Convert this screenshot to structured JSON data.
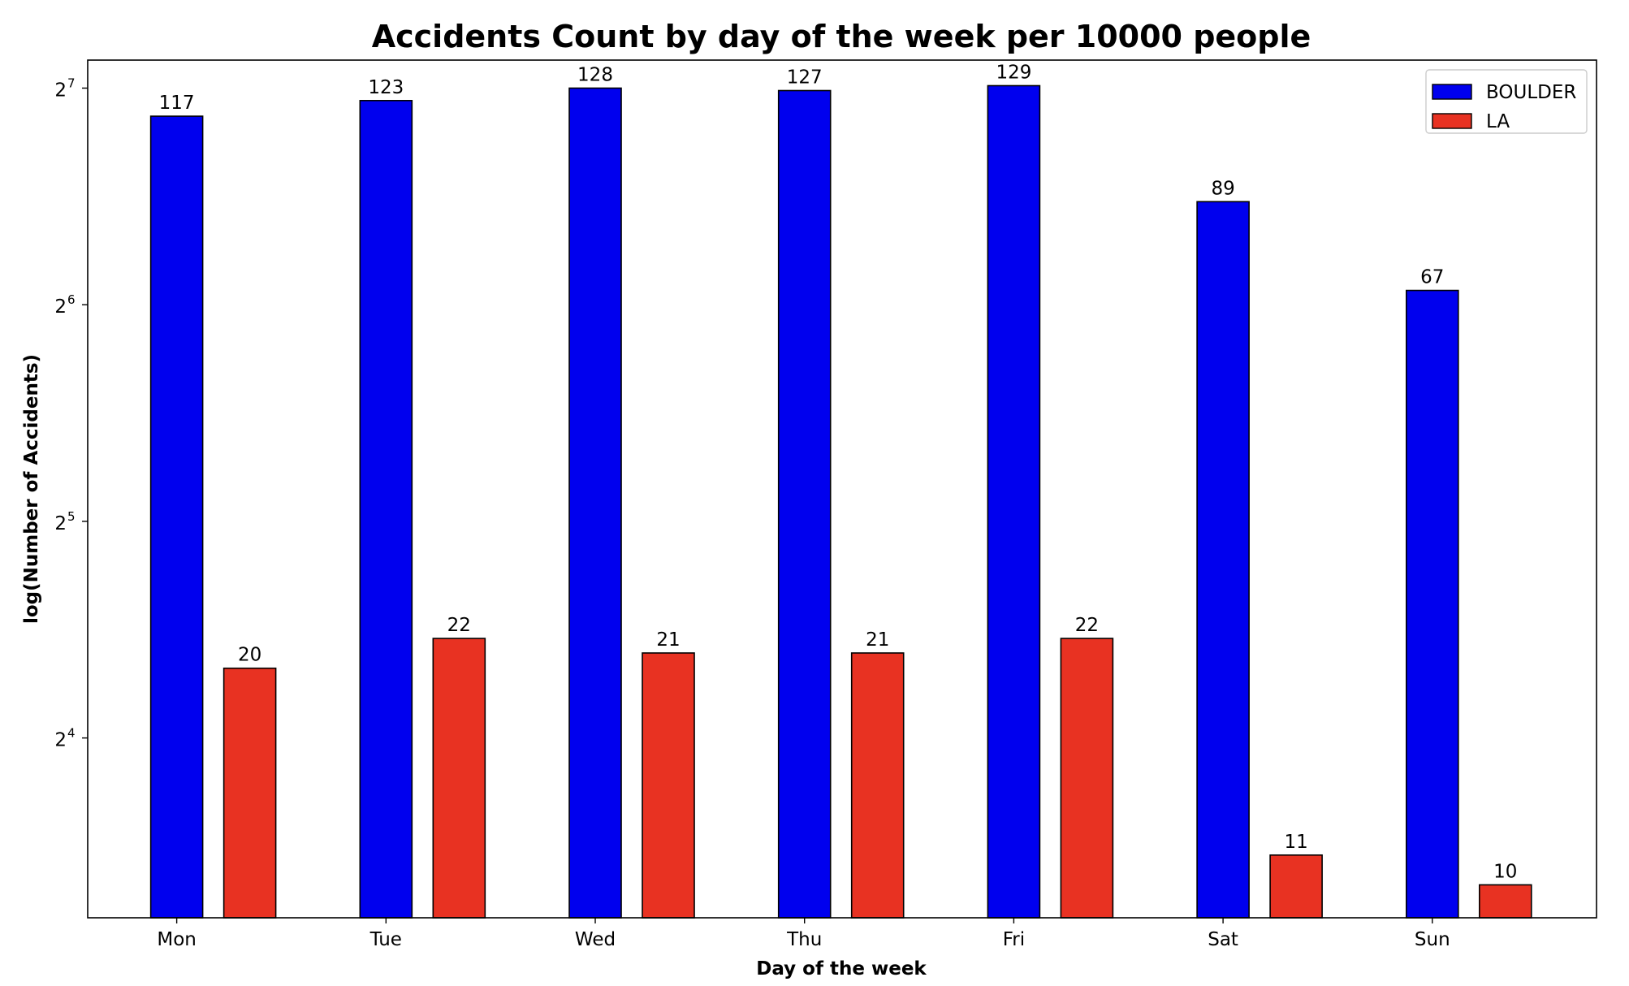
{
  "chart_data": {
    "type": "bar",
    "title": "Accidents Count by day of the week per 10000 people",
    "xlabel": "Day of the week",
    "ylabel": "log(Number of Accidents)",
    "yscale": "log2",
    "ylim": [
      9,
      140
    ],
    "yticks": [
      {
        "base": "2",
        "exp": "4",
        "value": 16
      },
      {
        "base": "2",
        "exp": "5",
        "value": 32
      },
      {
        "base": "2",
        "exp": "6",
        "value": 64
      },
      {
        "base": "2",
        "exp": "7",
        "value": 128
      }
    ],
    "categories": [
      "Mon",
      "Tue",
      "Wed",
      "Thu",
      "Fri",
      "Sat",
      "Sun"
    ],
    "series": [
      {
        "name": "BOULDER",
        "color": "#0000ee",
        "values": [
          117,
          123,
          128,
          127,
          129,
          89,
          67
        ],
        "labels": [
          "117",
          "123",
          "128",
          "127",
          "129",
          "89",
          "67"
        ]
      },
      {
        "name": "LA",
        "color": "#e83222",
        "values": [
          20,
          22,
          21,
          21,
          22,
          11,
          10
        ],
        "labels": [
          "20",
          "22",
          "21",
          "21",
          "22",
          "11",
          "10"
        ]
      }
    ],
    "legend_position": "top-right",
    "grid": false
  }
}
